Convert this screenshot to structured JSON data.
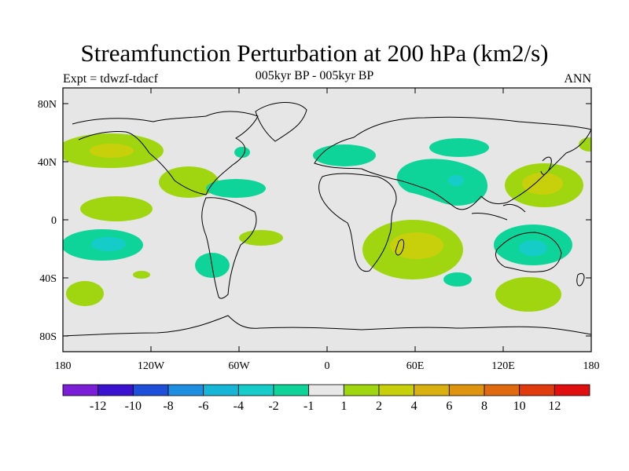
{
  "title": "Streamfunction Perturbation at 200 hPa (km2/s)",
  "experiment_label": "Expt = tdwzf-tdacf",
  "period_label": "005kyr BP - 005kyr BP",
  "season_label": "ANN",
  "y_ticks": [
    "80N",
    "40N",
    "0",
    "40S",
    "80S"
  ],
  "x_ticks": [
    "180",
    "120W",
    "60W",
    "0",
    "60E",
    "120E",
    "180"
  ],
  "colorbar": {
    "colors": [
      "#7a1fd6",
      "#3b12d0",
      "#1f4fd8",
      "#1f8ee0",
      "#18b6d6",
      "#16ccc8",
      "#0fd49a",
      "#e8e8e8",
      "#9fd60f",
      "#c8d00c",
      "#d8b010",
      "#df9410",
      "#e06a10",
      "#e03a0f",
      "#e00f0f"
    ],
    "labels": [
      "-12",
      "-10",
      "-8",
      "-6",
      "-4",
      "-2",
      "-1",
      "1",
      "2",
      "4",
      "6",
      "8",
      "10",
      "12"
    ]
  },
  "colors": {
    "background": "#e6e6e6",
    "pos_light": "#9fd60f",
    "pos_mid": "#c8d00c",
    "neg_light": "#0fd49a",
    "neg_mid": "#16ccc8"
  }
}
